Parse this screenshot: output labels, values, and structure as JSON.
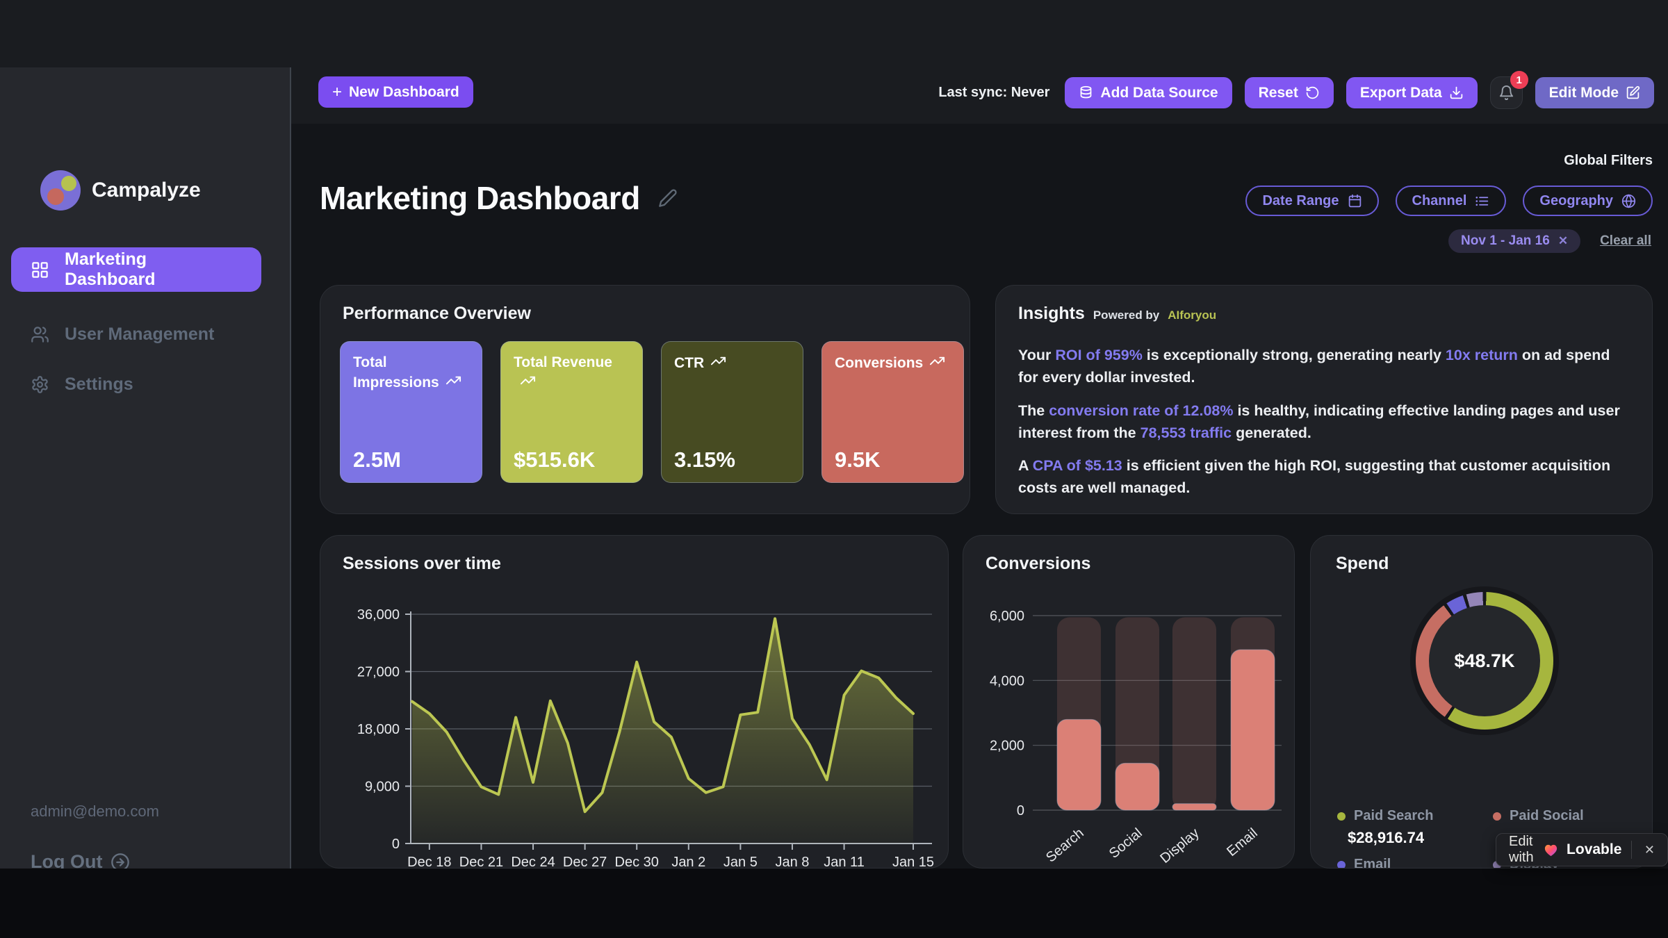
{
  "topbar": {
    "new_dashboard_label": "New Dashboard",
    "last_sync": "Last sync: Never",
    "add_data_source_label": "Add Data Source",
    "reset_label": "Reset",
    "export_label": "Export Data",
    "notification_count": "1",
    "edit_mode_label": "Edit Mode"
  },
  "sidebar": {
    "brand": "Campalyze",
    "items": [
      {
        "label": "Marketing Dashboard",
        "active": true
      },
      {
        "label": "User Management",
        "active": false
      },
      {
        "label": "Settings",
        "active": false
      }
    ],
    "user_email": "admin@demo.com",
    "logout_label": "Log Out"
  },
  "header": {
    "title": "Marketing Dashboard",
    "global_filters_label": "Global Filters",
    "filters": [
      {
        "label": "Date Range"
      },
      {
        "label": "Channel"
      },
      {
        "label": "Geography"
      }
    ],
    "active_filter_chip": "Nov 1 - Jan 16",
    "chip_close": "✕",
    "clear_all_label": "Clear all"
  },
  "performance": {
    "title": "Performance Overview",
    "kpis": [
      {
        "label": "Total Impressions",
        "value": "2.5M",
        "color": "#7d74e4"
      },
      {
        "label": "Total Revenue",
        "value": "$515.6K",
        "color": "#b9c353"
      },
      {
        "label": "CTR",
        "value": "3.15%",
        "color": "#474b22"
      },
      {
        "label": "Conversions",
        "value": "9.5K",
        "color": "#c8695e"
      }
    ]
  },
  "insights": {
    "title": "Insights",
    "powered_by": "Powered by",
    "provider": "AIforyou",
    "highlight_color": "#837bf0",
    "paragraphs": [
      [
        {
          "t": "Your "
        },
        {
          "t": "ROI of 959%",
          "h": true
        },
        {
          "t": " is exceptionally strong, generating nearly "
        },
        {
          "t": "10x return",
          "h": true
        },
        {
          "t": " on ad spend for every dollar invested."
        }
      ],
      [
        {
          "t": "The "
        },
        {
          "t": "conversion rate of 12.08%",
          "h": true
        },
        {
          "t": " is healthy, indicating effective landing pages and user interest from the "
        },
        {
          "t": "78,553 traffic",
          "h": true
        },
        {
          "t": " generated."
        }
      ],
      [
        {
          "t": "A "
        },
        {
          "t": "CPA of $5.13",
          "h": true
        },
        {
          "t": " is efficient given the high ROI, suggesting that customer acquisition costs are well managed."
        }
      ]
    ]
  },
  "chart_data": [
    {
      "type": "line",
      "title": "Sessions over time",
      "x": [
        "Dec 17",
        "Dec 18",
        "Dec 19",
        "Dec 20",
        "Dec 21",
        "Dec 22",
        "Dec 23",
        "Dec 24",
        "Dec 25",
        "Dec 26",
        "Dec 27",
        "Dec 28",
        "Dec 29",
        "Dec 30",
        "Dec 31",
        "Jan 1",
        "Jan 2",
        "Jan 3",
        "Jan 4",
        "Jan 5",
        "Jan 6",
        "Jan 7",
        "Jan 8",
        "Jan 9",
        "Jan 10",
        "Jan 11",
        "Jan 12",
        "Jan 13",
        "Jan 14",
        "Jan 15"
      ],
      "values": [
        22300,
        20400,
        17500,
        13000,
        8900,
        7700,
        19800,
        9600,
        22400,
        15800,
        5000,
        8000,
        17500,
        28500,
        19100,
        16700,
        10200,
        8000,
        8900,
        20200,
        20600,
        35300,
        19600,
        15500,
        10000,
        23300,
        27100,
        26000,
        22900,
        20400
      ],
      "ylim": [
        0,
        36000
      ],
      "yticks": [
        0,
        9000,
        18000,
        27000,
        36000
      ],
      "ytick_labels": [
        "0",
        "9,000",
        "18,000",
        "27,000",
        "36,000"
      ],
      "xticks": [
        {
          "label": "Dec 18",
          "i": 1
        },
        {
          "label": "Dec 21",
          "i": 4
        },
        {
          "label": "Dec 24",
          "i": 7
        },
        {
          "label": "Dec 27",
          "i": 10
        },
        {
          "label": "Dec 30",
          "i": 13
        },
        {
          "label": "Jan 2",
          "i": 16
        },
        {
          "label": "Jan 5",
          "i": 19
        },
        {
          "label": "Jan 8",
          "i": 22
        },
        {
          "label": "Jan 11",
          "i": 25
        },
        {
          "label": "Jan 15",
          "i": 29
        }
      ],
      "line_color": "#bcc752",
      "grid": true
    },
    {
      "type": "bar",
      "title": "Conversions",
      "categories": [
        "Search",
        "Social",
        "Display",
        "Email"
      ],
      "values": [
        2800,
        1450,
        200,
        4950
      ],
      "track_top": 5950,
      "ylim": [
        0,
        6000
      ],
      "yticks": [
        0,
        2000,
        4000,
        6000
      ],
      "ytick_labels": [
        "0",
        "2,000",
        "4,000",
        "6,000"
      ],
      "bar_color": "#db8076",
      "track_color": "rgba(219,128,118,0.17)",
      "grid": true
    },
    {
      "type": "pie",
      "title": "Spend",
      "center_label": "$48.7K",
      "segments": [
        {
          "label": "Paid Search",
          "pct": 59.4,
          "color": "#a6b63e",
          "value_label": "$28,916.74"
        },
        {
          "label": "Paid Social",
          "pct": 30.9,
          "color": "#c66e63"
        },
        {
          "label": "Email",
          "pct": 5.0,
          "color": "#6a64d8"
        },
        {
          "label": "Display",
          "pct": 4.7,
          "color": "#9586b8"
        }
      ]
    }
  ],
  "lovable_badge": {
    "prefix": "Edit with",
    "brand": "Lovable",
    "close": "✕"
  }
}
